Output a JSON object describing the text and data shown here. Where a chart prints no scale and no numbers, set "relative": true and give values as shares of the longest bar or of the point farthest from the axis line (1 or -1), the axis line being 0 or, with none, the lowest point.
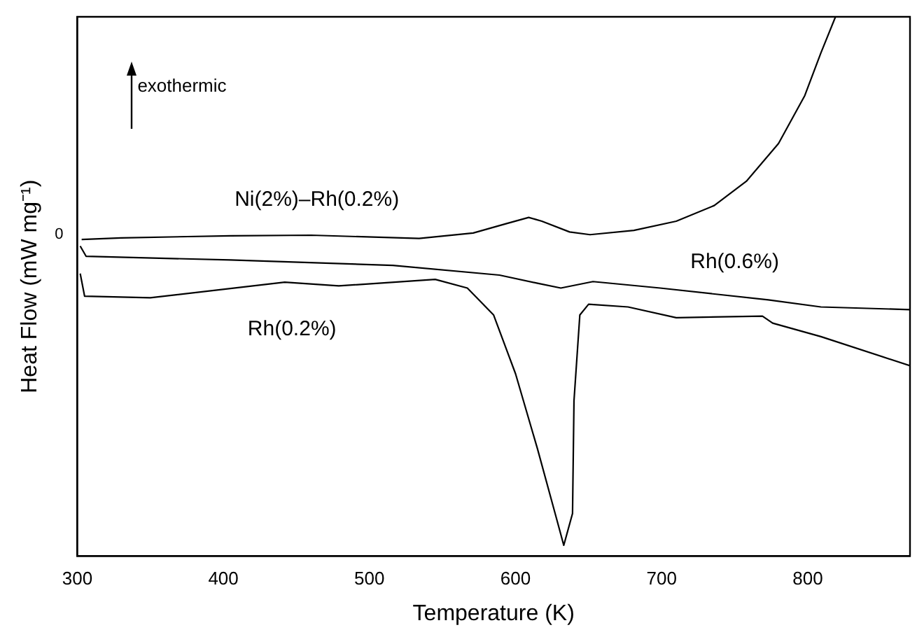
{
  "chart_data": {
    "type": "line",
    "relative": true,
    "xlabel": "Temperature (K)",
    "ylabel": "Heat Flow (mW mg⁻¹)",
    "xlim": [
      300,
      870
    ],
    "xticks": [
      300,
      400,
      500,
      600,
      700,
      800
    ],
    "marker": "none",
    "legend": false,
    "grid": false,
    "annotations": [
      "exothermic",
      "0"
    ],
    "series": [
      {
        "name": "Ni(2%)–Rh(0.2%)",
        "color": "#000000",
        "x": [
          303,
          330,
          405,
          460,
          534,
          571,
          593,
          609,
          618,
          637,
          651,
          681,
          710,
          736,
          758,
          780,
          798,
          809,
          819
        ],
        "values": [
          0.587,
          0.59,
          0.594,
          0.595,
          0.589,
          0.599,
          0.616,
          0.628,
          0.621,
          0.601,
          0.596,
          0.604,
          0.621,
          0.65,
          0.695,
          0.765,
          0.854,
          0.933,
          1.0
        ]
      },
      {
        "name": "Rh(0.6%)",
        "color": "#000000",
        "x": [
          302,
          306,
          405,
          516,
          589,
          615,
          631,
          653,
          699,
          773,
          809,
          870
        ],
        "values": [
          0.575,
          0.556,
          0.549,
          0.539,
          0.521,
          0.506,
          0.497,
          0.509,
          0.497,
          0.475,
          0.462,
          0.457
        ]
      },
      {
        "name": "Rh(0.2%)",
        "color": "#000000",
        "x": [
          302,
          305,
          350,
          442,
          479,
          545,
          567,
          585,
          600,
          615,
          628,
          633,
          639,
          640,
          644,
          650,
          677,
          710,
          769,
          776,
          809,
          870
        ],
        "values": [
          0.524,
          0.482,
          0.479,
          0.508,
          0.501,
          0.513,
          0.497,
          0.447,
          0.338,
          0.199,
          0.07,
          0.02,
          0.079,
          0.288,
          0.447,
          0.467,
          0.462,
          0.442,
          0.445,
          0.432,
          0.407,
          0.353
        ]
      }
    ]
  }
}
